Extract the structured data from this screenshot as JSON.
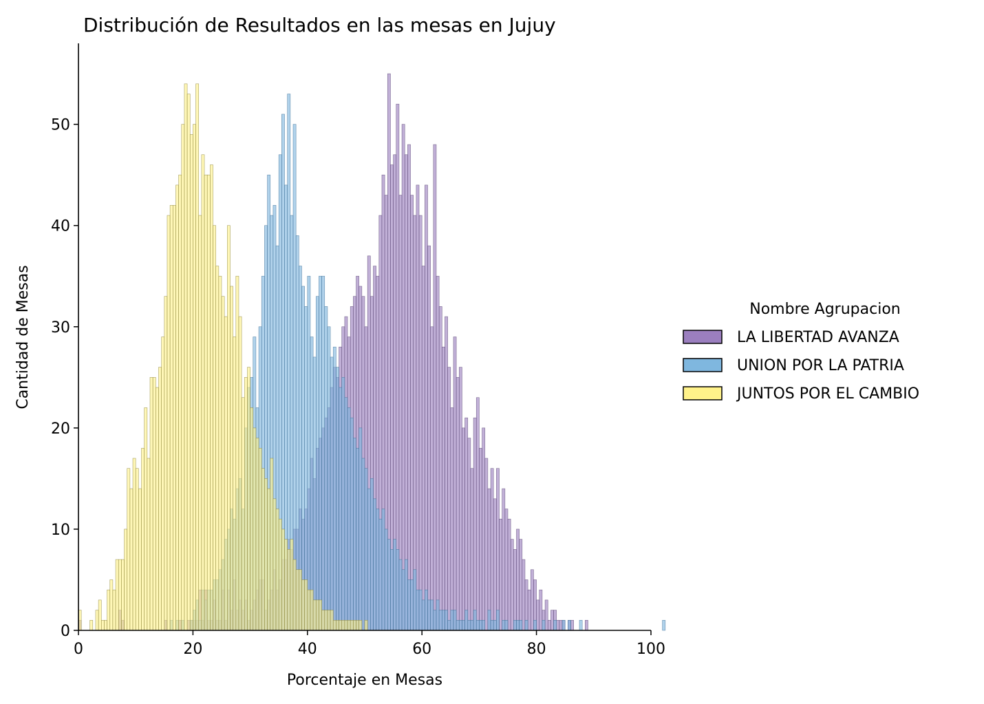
{
  "chart_data": {
    "type": "bar",
    "subtype": "overlapping histogram",
    "title": "Distribución de Resultados en las mesas en Jujuy",
    "xlabel": "Porcentaje en Mesas",
    "ylabel": "Cantidad de Mesas",
    "xlim": [
      0,
      100
    ],
    "ylim": [
      0,
      58
    ],
    "xticks": [
      0,
      20,
      40,
      60,
      80,
      100
    ],
    "xtick_labels": [
      "0",
      "20",
      "40",
      "60",
      "80",
      "100"
    ],
    "yticks": [
      0,
      10,
      20,
      30,
      40,
      50
    ],
    "ytick_labels": [
      "0",
      "10",
      "20",
      "30",
      "40",
      "50"
    ],
    "grid": false,
    "legend": {
      "title": "Nombre Agrupacion",
      "placement": "right, outside plot",
      "entries": [
        "LA LIBERTAD AVANZA",
        "UNION POR LA PATRIA",
        "JUNTOS POR EL CAMBIO"
      ]
    },
    "bin_width": 0.5,
    "bin_start": 0,
    "series": [
      {
        "name": "LA LIBERTAD AVANZA",
        "color": "#9b7fbf",
        "edge_color": "#5a4573",
        "counts_from_bin": 0,
        "counts": [
          1,
          0,
          0,
          0,
          0,
          0,
          0,
          0,
          0,
          0,
          0,
          0,
          0,
          0,
          2,
          1,
          0,
          0,
          0,
          0,
          0,
          0,
          0,
          0,
          0,
          0,
          0,
          0,
          0,
          0,
          1,
          0,
          0,
          0,
          0,
          1,
          0,
          0,
          1,
          1,
          1,
          1,
          4,
          1,
          4,
          1,
          1,
          3,
          1,
          1,
          4,
          1,
          4,
          2,
          5,
          2,
          3,
          2,
          3,
          1,
          2,
          3,
          4,
          5,
          5,
          2,
          3,
          4,
          6,
          4,
          5,
          7,
          7,
          9,
          8,
          10,
          10,
          12,
          11,
          12,
          14,
          17,
          15,
          18,
          19,
          20,
          21,
          22,
          24,
          26,
          25,
          28,
          30,
          31,
          29,
          32,
          33,
          35,
          34,
          33,
          30,
          37,
          33,
          36,
          35,
          41,
          45,
          43,
          55,
          46,
          47,
          52,
          43,
          50,
          47,
          48,
          43,
          41,
          44,
          41,
          36,
          44,
          38,
          30,
          48,
          35,
          32,
          28,
          31,
          26,
          22,
          29,
          25,
          26,
          20,
          21,
          19,
          16,
          21,
          23,
          18,
          20,
          17,
          14,
          16,
          13,
          16,
          11,
          14,
          12,
          11,
          9,
          8,
          10,
          9,
          7,
          5,
          4,
          6,
          5,
          3,
          4,
          2,
          3,
          1,
          2,
          2,
          1,
          1,
          1,
          0,
          1,
          1,
          0,
          0,
          0,
          0,
          1
        ]
      },
      {
        "name": "UNION POR LA PATRIA",
        "color": "#7fb7df",
        "edge_color": "#3e6f96",
        "counts_from_bin": 0,
        "counts": [
          0,
          0,
          0,
          0,
          0,
          0,
          0,
          0,
          0,
          0,
          0,
          0,
          0,
          0,
          0,
          0,
          0,
          0,
          0,
          0,
          0,
          0,
          0,
          0,
          0,
          0,
          0,
          0,
          0,
          0,
          0,
          0,
          1,
          0,
          1,
          0,
          1,
          0,
          0,
          1,
          2,
          3,
          1,
          4,
          3,
          4,
          4,
          5,
          5,
          6,
          7,
          9,
          10,
          12,
          11,
          14,
          15,
          12,
          20,
          24,
          25,
          29,
          22,
          30,
          35,
          40,
          45,
          41,
          42,
          38,
          47,
          51,
          44,
          53,
          41,
          50,
          39,
          36,
          34,
          32,
          35,
          29,
          27,
          33,
          35,
          35,
          32,
          30,
          27,
          28,
          26,
          24,
          25,
          23,
          22,
          21,
          19,
          18,
          20,
          17,
          16,
          14,
          15,
          13,
          12,
          11,
          12,
          10,
          9,
          8,
          9,
          8,
          7,
          6,
          7,
          5,
          5,
          6,
          4,
          4,
          3,
          4,
          3,
          3,
          2,
          3,
          2,
          2,
          2,
          1,
          2,
          2,
          1,
          1,
          1,
          2,
          1,
          1,
          2,
          1,
          1,
          1,
          0,
          2,
          1,
          1,
          2,
          0,
          1,
          1,
          0,
          0,
          1,
          1,
          1,
          0,
          1,
          0,
          0,
          1,
          0,
          0,
          1,
          0,
          0,
          0,
          1,
          0,
          0,
          1,
          0,
          1,
          0,
          0,
          0,
          1,
          0,
          0,
          0,
          0,
          0,
          0,
          0,
          0,
          0,
          0,
          0,
          0,
          0,
          0,
          0,
          0,
          0,
          0,
          0,
          0,
          0,
          0,
          0,
          0,
          0,
          0,
          0,
          0,
          1
        ]
      },
      {
        "name": "JUNTOS POR EL CAMBIO",
        "color": "#fff28a",
        "edge_color": "#8a8238",
        "counts_from_bin": 0,
        "counts": [
          2,
          0,
          0,
          0,
          1,
          0,
          2,
          3,
          1,
          1,
          4,
          5,
          4,
          7,
          7,
          7,
          10,
          16,
          14,
          17,
          16,
          14,
          18,
          22,
          17,
          25,
          25,
          24,
          26,
          29,
          33,
          41,
          42,
          42,
          44,
          45,
          50,
          54,
          53,
          49,
          50,
          54,
          41,
          47,
          45,
          45,
          46,
          40,
          36,
          35,
          33,
          31,
          40,
          34,
          29,
          35,
          31,
          23,
          25,
          26,
          22,
          20,
          19,
          18,
          16,
          15,
          14,
          17,
          13,
          12,
          11,
          10,
          9,
          8,
          9,
          7,
          6,
          6,
          5,
          5,
          4,
          4,
          3,
          3,
          3,
          2,
          2,
          2,
          2,
          1,
          1,
          1,
          1,
          1,
          1,
          1,
          1,
          1,
          1,
          0,
          1
        ]
      }
    ]
  }
}
